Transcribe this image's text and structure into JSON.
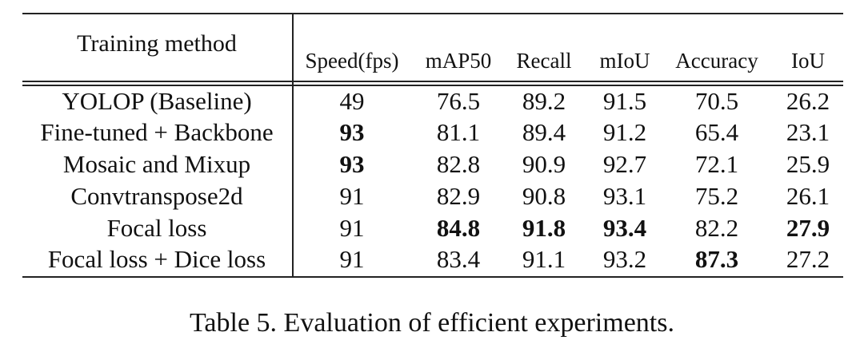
{
  "table": {
    "columns": [
      "Training method",
      "Speed(fps)",
      "mAP50",
      "Recall",
      "mIoU",
      "Accuracy",
      "IoU"
    ],
    "rows": [
      {
        "method": "YOLOP (Baseline)",
        "values": [
          "49",
          "76.5",
          "89.2",
          "91.5",
          "70.5",
          "26.2"
        ],
        "bold": [
          false,
          false,
          false,
          false,
          false,
          false
        ]
      },
      {
        "method": "Fine-tuned + Backbone",
        "values": [
          "93",
          "81.1",
          "89.4",
          "91.2",
          "65.4",
          "23.1"
        ],
        "bold": [
          true,
          false,
          false,
          false,
          false,
          false
        ]
      },
      {
        "method": "Mosaic and Mixup",
        "values": [
          "93",
          "82.8",
          "90.9",
          "92.7",
          "72.1",
          "25.9"
        ],
        "bold": [
          true,
          false,
          false,
          false,
          false,
          false
        ]
      },
      {
        "method": "Convtranspose2d",
        "values": [
          "91",
          "82.9",
          "90.8",
          "93.1",
          "75.2",
          "26.1"
        ],
        "bold": [
          false,
          false,
          false,
          false,
          false,
          false
        ]
      },
      {
        "method": "Focal loss",
        "values": [
          "91",
          "84.8",
          "91.8",
          "93.4",
          "82.2",
          "27.9"
        ],
        "bold": [
          false,
          true,
          true,
          true,
          false,
          true
        ]
      },
      {
        "method": "Focal loss + Dice loss",
        "values": [
          "91",
          "83.4",
          "91.1",
          "93.2",
          "87.3",
          "27.2"
        ],
        "bold": [
          false,
          false,
          false,
          false,
          true,
          false
        ]
      }
    ]
  },
  "caption": "Table 5. Evaluation of efficient experiments."
}
